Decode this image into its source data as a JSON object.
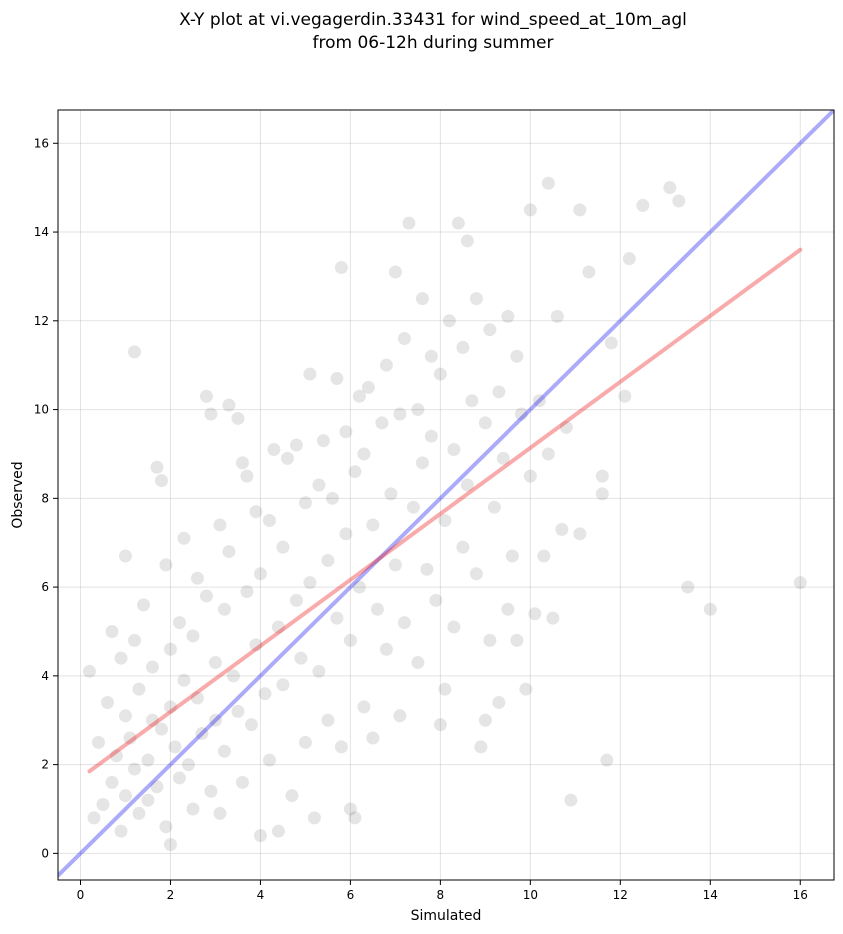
{
  "chart_data": {
    "type": "scatter",
    "title": [
      "X-Y plot at vi.vegagerdin.33431 for wind_speed_at_10m_agl",
      "from 06-12h during summer"
    ],
    "xlabel": "Simulated",
    "ylabel": "Observed",
    "xlim": [
      -0.5,
      16.75
    ],
    "ylim": [
      -0.6,
      16.75
    ],
    "xticks": [
      0,
      2,
      4,
      6,
      8,
      10,
      12,
      14,
      16
    ],
    "yticks": [
      0,
      2,
      4,
      6,
      8,
      10,
      12,
      14,
      16
    ],
    "grid": true,
    "colors": {
      "points": "#000000",
      "identity_line": "#0000ee",
      "fit_line": "#ee0000"
    },
    "reference_lines": [
      {
        "kind": "identity",
        "x": [
          -0.5,
          16.75
        ],
        "y": [
          -0.5,
          16.75
        ]
      },
      {
        "kind": "fit",
        "x": [
          0.2,
          16.0
        ],
        "y": [
          1.85,
          13.6
        ]
      }
    ],
    "points": [
      [
        1.2,
        11.3
      ],
      [
        0.2,
        4.1
      ],
      [
        0.3,
        0.8
      ],
      [
        0.4,
        2.5
      ],
      [
        0.5,
        1.1
      ],
      [
        0.6,
        3.4
      ],
      [
        0.7,
        1.6
      ],
      [
        0.7,
        5.0
      ],
      [
        0.8,
        2.2
      ],
      [
        0.9,
        0.5
      ],
      [
        0.9,
        4.4
      ],
      [
        1.0,
        6.7
      ],
      [
        1.0,
        1.3
      ],
      [
        1.0,
        3.1
      ],
      [
        1.1,
        2.6
      ],
      [
        1.2,
        1.9
      ],
      [
        1.2,
        4.8
      ],
      [
        1.3,
        0.9
      ],
      [
        1.3,
        3.7
      ],
      [
        1.4,
        5.6
      ],
      [
        1.5,
        2.1
      ],
      [
        1.5,
        1.2
      ],
      [
        1.6,
        3.0
      ],
      [
        1.6,
        4.2
      ],
      [
        1.7,
        8.7
      ],
      [
        1.7,
        1.5
      ],
      [
        1.8,
        8.4
      ],
      [
        1.8,
        2.8
      ],
      [
        1.9,
        6.5
      ],
      [
        1.9,
        0.6
      ],
      [
        2.0,
        4.6
      ],
      [
        2.0,
        3.3
      ],
      [
        2.0,
        0.2
      ],
      [
        2.1,
        2.4
      ],
      [
        2.2,
        5.2
      ],
      [
        2.2,
        1.7
      ],
      [
        2.3,
        7.1
      ],
      [
        2.3,
        3.9
      ],
      [
        2.4,
        2.0
      ],
      [
        2.5,
        4.9
      ],
      [
        2.5,
        1.0
      ],
      [
        2.6,
        6.2
      ],
      [
        2.6,
        3.5
      ],
      [
        2.7,
        2.7
      ],
      [
        2.8,
        10.3
      ],
      [
        2.8,
        5.8
      ],
      [
        2.9,
        9.9
      ],
      [
        2.9,
        1.4
      ],
      [
        3.0,
        4.3
      ],
      [
        3.0,
        3.0
      ],
      [
        3.1,
        7.4
      ],
      [
        3.1,
        0.9
      ],
      [
        3.2,
        5.5
      ],
      [
        3.2,
        2.3
      ],
      [
        3.3,
        10.1
      ],
      [
        3.3,
        6.8
      ],
      [
        3.4,
        4.0
      ],
      [
        3.5,
        9.8
      ],
      [
        3.5,
        3.2
      ],
      [
        3.6,
        8.8
      ],
      [
        3.6,
        1.6
      ],
      [
        3.7,
        5.9
      ],
      [
        3.7,
        8.5
      ],
      [
        3.8,
        2.9
      ],
      [
        3.9,
        7.7
      ],
      [
        3.9,
        4.7
      ],
      [
        4.0,
        0.4
      ],
      [
        4.0,
        6.3
      ],
      [
        4.1,
        3.6
      ],
      [
        4.2,
        7.5
      ],
      [
        4.2,
        2.1
      ],
      [
        4.3,
        9.1
      ],
      [
        4.4,
        5.1
      ],
      [
        4.4,
        0.5
      ],
      [
        4.5,
        6.9
      ],
      [
        4.5,
        3.8
      ],
      [
        4.6,
        8.9
      ],
      [
        4.7,
        1.3
      ],
      [
        4.8,
        5.7
      ],
      [
        4.8,
        9.2
      ],
      [
        4.9,
        4.4
      ],
      [
        5.0,
        7.9
      ],
      [
        5.0,
        2.5
      ],
      [
        5.1,
        10.8
      ],
      [
        5.1,
        6.1
      ],
      [
        5.2,
        0.8
      ],
      [
        5.3,
        8.3
      ],
      [
        5.3,
        4.1
      ],
      [
        5.4,
        9.3
      ],
      [
        5.5,
        6.6
      ],
      [
        5.5,
        3.0
      ],
      [
        5.6,
        8.0
      ],
      [
        5.7,
        10.7
      ],
      [
        5.7,
        5.3
      ],
      [
        5.8,
        13.2
      ],
      [
        5.8,
        2.4
      ],
      [
        5.9,
        9.5
      ],
      [
        5.9,
        7.2
      ],
      [
        6.0,
        1.0
      ],
      [
        6.0,
        4.8
      ],
      [
        6.1,
        0.8
      ],
      [
        6.1,
        8.6
      ],
      [
        6.2,
        10.3
      ],
      [
        6.2,
        6.0
      ],
      [
        6.3,
        9.0
      ],
      [
        6.3,
        3.3
      ],
      [
        6.4,
        10.5
      ],
      [
        6.5,
        7.4
      ],
      [
        6.5,
        2.6
      ],
      [
        6.6,
        5.5
      ],
      [
        6.7,
        9.7
      ],
      [
        6.8,
        11.0
      ],
      [
        6.8,
        4.6
      ],
      [
        6.9,
        8.1
      ],
      [
        7.0,
        13.1
      ],
      [
        7.0,
        6.5
      ],
      [
        7.1,
        3.1
      ],
      [
        7.1,
        9.9
      ],
      [
        7.2,
        11.6
      ],
      [
        7.2,
        5.2
      ],
      [
        7.3,
        14.2
      ],
      [
        7.4,
        7.8
      ],
      [
        7.5,
        10.0
      ],
      [
        7.5,
        4.3
      ],
      [
        7.6,
        12.5
      ],
      [
        7.6,
        8.8
      ],
      [
        7.7,
        6.4
      ],
      [
        7.8,
        11.2
      ],
      [
        7.8,
        9.4
      ],
      [
        7.9,
        5.7
      ],
      [
        8.0,
        10.8
      ],
      [
        8.0,
        2.9
      ],
      [
        8.1,
        7.5
      ],
      [
        8.1,
        3.7
      ],
      [
        8.2,
        12.0
      ],
      [
        8.3,
        9.1
      ],
      [
        8.3,
        5.1
      ],
      [
        8.4,
        14.2
      ],
      [
        8.5,
        11.4
      ],
      [
        8.5,
        6.9
      ],
      [
        8.6,
        13.8
      ],
      [
        8.6,
        8.3
      ],
      [
        8.7,
        10.2
      ],
      [
        8.8,
        12.5
      ],
      [
        8.8,
        6.3
      ],
      [
        8.9,
        2.4
      ],
      [
        9.0,
        9.7
      ],
      [
        9.0,
        3.0
      ],
      [
        9.1,
        11.8
      ],
      [
        9.1,
        4.8
      ],
      [
        9.2,
        7.8
      ],
      [
        9.3,
        10.4
      ],
      [
        9.3,
        3.4
      ],
      [
        9.4,
        8.9
      ],
      [
        9.5,
        12.1
      ],
      [
        9.5,
        5.5
      ],
      [
        9.6,
        6.7
      ],
      [
        9.7,
        11.2
      ],
      [
        9.7,
        4.8
      ],
      [
        9.8,
        9.9
      ],
      [
        9.9,
        3.7
      ],
      [
        10.0,
        14.5
      ],
      [
        10.0,
        8.5
      ],
      [
        10.1,
        5.4
      ],
      [
        10.2,
        10.2
      ],
      [
        10.3,
        6.7
      ],
      [
        10.4,
        15.1
      ],
      [
        10.4,
        9.0
      ],
      [
        10.5,
        5.3
      ],
      [
        10.6,
        12.1
      ],
      [
        10.7,
        7.3
      ],
      [
        10.8,
        9.6
      ],
      [
        10.9,
        1.2
      ],
      [
        11.1,
        14.5
      ],
      [
        11.1,
        7.2
      ],
      [
        11.3,
        13.1
      ],
      [
        11.6,
        8.5
      ],
      [
        11.6,
        8.1
      ],
      [
        11.7,
        2.1
      ],
      [
        11.8,
        11.5
      ],
      [
        12.1,
        10.3
      ],
      [
        12.2,
        13.4
      ],
      [
        12.5,
        14.6
      ],
      [
        13.1,
        15.0
      ],
      [
        13.3,
        14.7
      ],
      [
        13.5,
        6.0
      ],
      [
        14.0,
        5.5
      ],
      [
        16.0,
        6.1
      ]
    ]
  }
}
